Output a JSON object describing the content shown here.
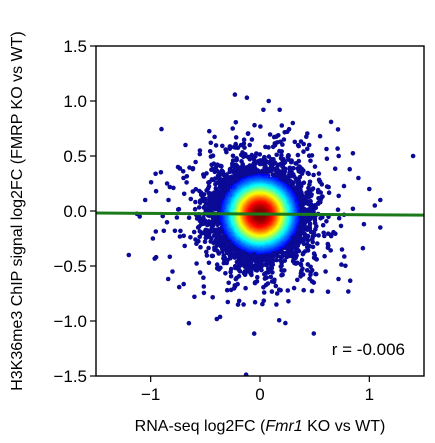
{
  "chart_data": {
    "type": "scatter",
    "title": "",
    "xlabel_parts": [
      "RNA-seq log2FC (",
      "Fmr1",
      " KO vs WT)"
    ],
    "ylabel": "H3K36me3 ChIP signal log2FC (FMRP KO vs WT)",
    "xlim": [
      -1.5,
      1.5
    ],
    "ylim": [
      -1.5,
      1.5
    ],
    "x_ticks": [
      -1,
      0,
      1
    ],
    "x_tick_labels": [
      "−1",
      "0",
      "1"
    ],
    "y_ticks": [
      -1.5,
      -1.0,
      -0.5,
      0.0,
      0.5,
      1.0,
      1.5
    ],
    "y_tick_labels": [
      "−1.5",
      "−1.0",
      "−0.5",
      "0.0",
      "0.5",
      "1.0",
      "1.5"
    ],
    "grid": false,
    "annotation": "r = -0.006",
    "point_color": "#0a0a96",
    "density_colormap": "jet",
    "regression_line": {
      "color": "#1a7a1a",
      "x": [
        -1.5,
        1.5
      ],
      "y": [
        -0.018,
        -0.038
      ]
    },
    "outliers": [
      [
        -0.12,
        1.03
      ],
      [
        0.08,
        1.0
      ],
      [
        0.18,
        0.92
      ],
      [
        -0.25,
        0.75
      ],
      [
        0.3,
        0.8
      ],
      [
        -0.55,
        0.55
      ],
      [
        -0.75,
        0.4
      ],
      [
        -0.85,
        0.25
      ],
      [
        -0.95,
        0.18
      ],
      [
        -1.05,
        0.1
      ],
      [
        -0.98,
        -0.25
      ],
      [
        -0.95,
        -0.42
      ],
      [
        -0.8,
        -0.55
      ],
      [
        -1.2,
        -0.4
      ],
      [
        -0.65,
        -1.02
      ],
      [
        -0.6,
        -0.78
      ],
      [
        0.55,
        0.68
      ],
      [
        0.72,
        0.5
      ],
      [
        0.82,
        0.38
      ],
      [
        0.9,
        0.3
      ],
      [
        1.4,
        0.5
      ],
      [
        1.0,
        0.2
      ],
      [
        1.05,
        0.05
      ],
      [
        0.95,
        -0.12
      ],
      [
        0.75,
        -0.35
      ],
      [
        0.6,
        -0.55
      ],
      [
        0.4,
        -0.72
      ],
      [
        0.15,
        -0.85
      ],
      [
        -0.15,
        -0.85
      ],
      [
        -0.3,
        -0.72
      ],
      [
        0.25,
        0.72
      ],
      [
        -0.05,
        0.78
      ],
      [
        0.45,
        0.6
      ],
      [
        -0.45,
        0.62
      ],
      [
        0.62,
        -0.3
      ],
      [
        -0.7,
        0.3
      ],
      [
        1.1,
        -0.15
      ],
      [
        -0.88,
        -0.18
      ],
      [
        0.85,
        0.02
      ],
      [
        -1.1,
        -0.05
      ]
    ],
    "density": {
      "n": 6500,
      "center": [
        0.0,
        -0.03
      ],
      "sd_x": 0.19,
      "sd_y": 0.19
    }
  }
}
